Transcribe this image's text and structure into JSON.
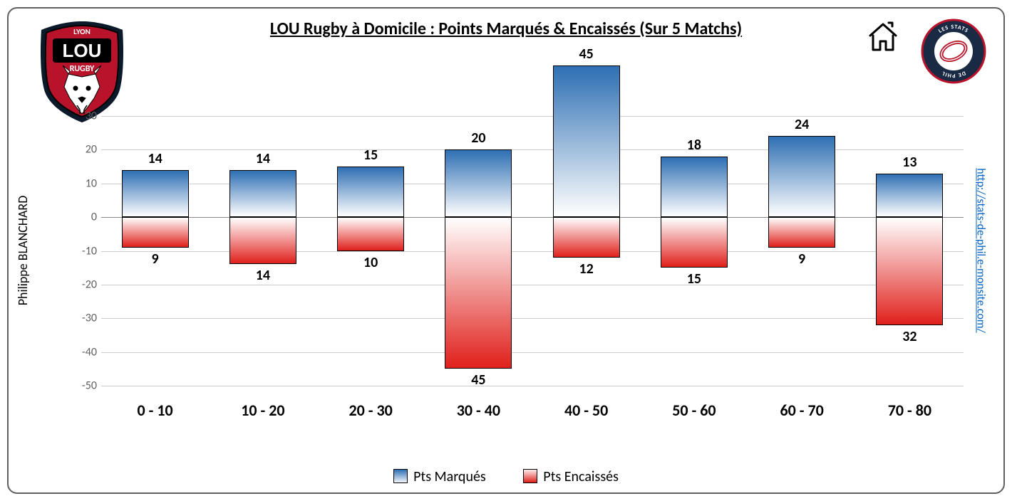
{
  "title": "LOU Rugby à Domicile : Points Marqués & Encaissés (Sur 5 Matchs)",
  "author": "Philippe BLANCHARD",
  "source_url_text": "http://stats-de-phil.e-monsite.com/",
  "chart": {
    "type": "bar-diverging",
    "categories": [
      "0 - 10",
      "10 - 20",
      "20 - 30",
      "30 - 40",
      "40 - 50",
      "50 - 60",
      "60 - 70",
      "70 - 80"
    ],
    "series_pos": {
      "label": "Pts Marqués",
      "values": [
        14,
        14,
        15,
        20,
        45,
        18,
        24,
        13
      ]
    },
    "series_neg": {
      "label": "Pts Encaissés",
      "values": [
        9,
        14,
        10,
        45,
        12,
        15,
        9,
        32
      ]
    },
    "ylim": [
      -50,
      45
    ],
    "yticks": [
      -50,
      -40,
      -30,
      -20,
      -10,
      0,
      10,
      20,
      30
    ],
    "bar_width_ratio": 0.62,
    "colors": {
      "grid": "#cccccc",
      "zero": "#888888",
      "tick_text": "#606060",
      "pos_top": "#2e6fb3",
      "pos_bottom": "#ffffff",
      "neg_top": "#ffffff",
      "neg_bottom": "#e0201b",
      "label_text": "#000000",
      "bar_border": "#000000",
      "background": "#ffffff"
    },
    "legend": {
      "pos_swatch": {
        "top": "#2e6fb3",
        "bottom": "#f2f6fb"
      },
      "neg_swatch": {
        "top": "#fdeceb",
        "bottom": "#e0201b"
      }
    },
    "fonts": {
      "title_pt": 24,
      "label_pt": 20,
      "xcat_pt": 22,
      "ytick_pt": 16,
      "legend_pt": 20,
      "author_pt": 18,
      "link_pt": 16
    },
    "logos": {
      "left": {
        "name": "lou-rugby-logo",
        "top_text": "LYON",
        "main_text": "LOU",
        "sub_text": "RUGBY",
        "shield_fill": "#b8132a",
        "shield_stroke": "#0b1a2b",
        "wolf_fill": "#ffffff"
      },
      "right": {
        "name": "stats-de-phil-logo",
        "ring_fill": "#1a2a44",
        "ring_stroke": "#b8132a",
        "inner_fill": "#ffffff",
        "ring_text_top": "LES STATS",
        "ring_text_bottom": "DE PHIL"
      },
      "home_icon": {
        "name": "home-icon",
        "stroke": "#000000"
      }
    }
  }
}
